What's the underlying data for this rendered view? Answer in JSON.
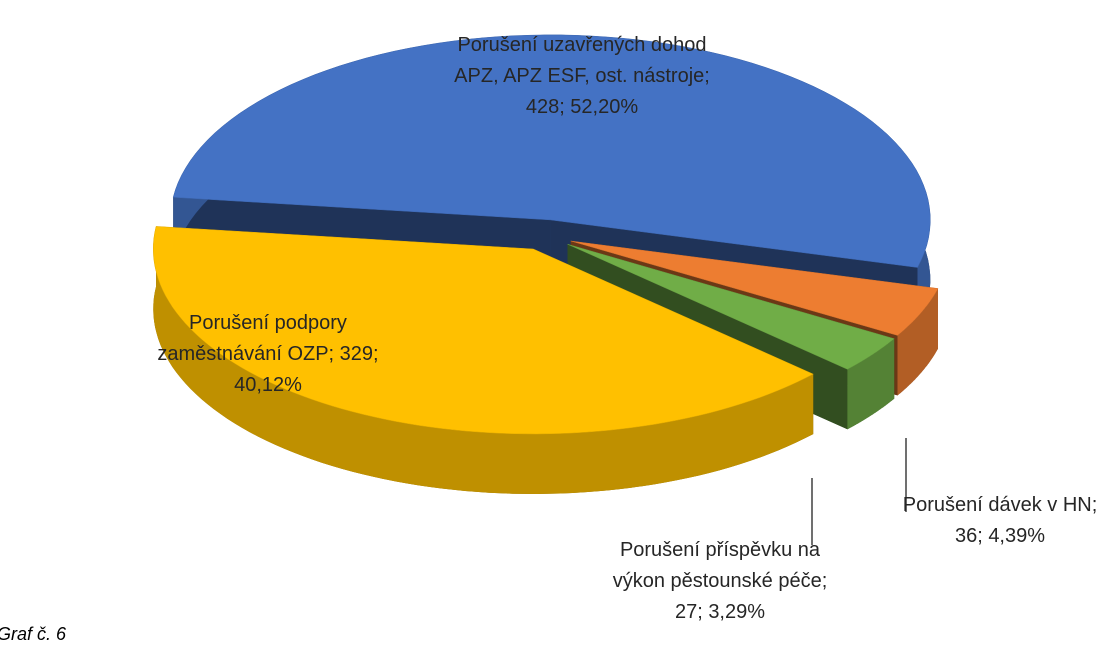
{
  "chart_data": {
    "type": "pie",
    "value_labels": [
      "Porušení uzavřených dohod APZ, APZ ESF, ost. nástroje; 428; 52,20%",
      "Porušení dávek v HN; 36; 4,39%",
      "Porušení příspěvku na výkon pěstounské péče; 27; 3,29%",
      "Porušení podpory zaměstnávání OZP; 329; 40,12%"
    ],
    "values": [
      428,
      36,
      27,
      329
    ],
    "colors": [
      "#4472c4",
      "#ed7d31",
      "#70ad47",
      "#ffc000"
    ],
    "caption": "Graf č. 6"
  }
}
